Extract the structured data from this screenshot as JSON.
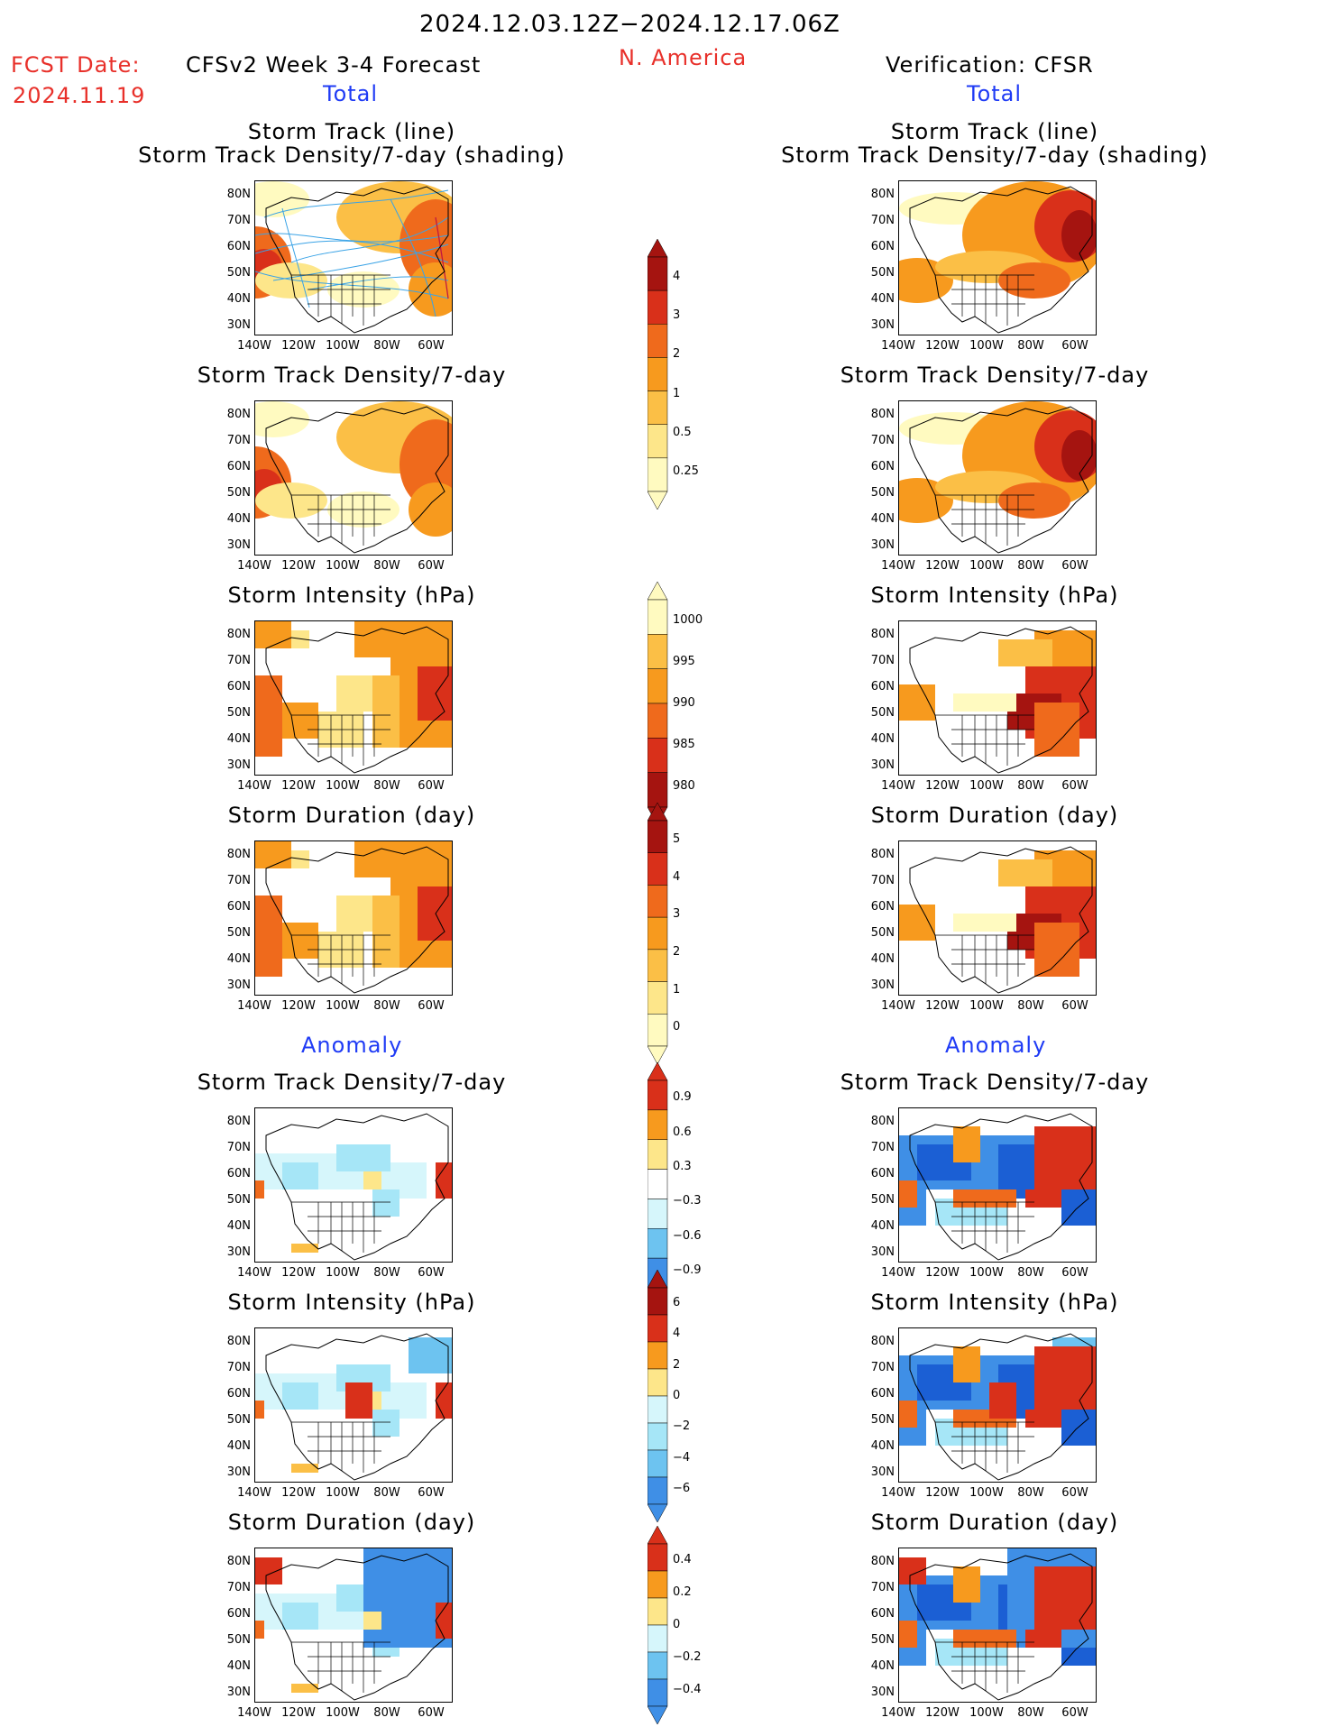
{
  "header": {
    "period": "2024.12.03.12Z−2024.12.17.06Z",
    "fcst_date_label": "FCST Date:",
    "fcst_date_value": "2024.11.19",
    "model_title": "CFSv2 Week 3-4 Forecast",
    "region": "N. America",
    "verification": "Verification: CFSR",
    "left_total": "Total",
    "right_total": "Total",
    "left_anomaly": "Anomaly",
    "right_anomaly": "Anomaly"
  },
  "axes": {
    "lat_labels": [
      "80N",
      "70N",
      "60N",
      "50N",
      "40N",
      "30N"
    ],
    "lon_labels": [
      "140W",
      "120W",
      "100W",
      "80W",
      "60W"
    ]
  },
  "panels": {
    "track_title_1": "Storm Track (line)",
    "track_title_2": "Storm Track Density/7-day (shading)",
    "density": "Storm Track Density/7-day",
    "intensity": "Storm Intensity (hPa)",
    "duration": "Storm Duration (day)"
  },
  "colorbars": {
    "density_total": [
      "4",
      "3",
      "2",
      "1",
      "0.5",
      "0.25"
    ],
    "intensity_total": [
      "1000",
      "995",
      "990",
      "985",
      "980"
    ],
    "duration_total": [
      "5",
      "4",
      "3",
      "2",
      "1",
      "0"
    ],
    "density_anom": [
      "0.9",
      "0.6",
      "0.3",
      "−0.3",
      "−0.6",
      "−0.9"
    ],
    "intensity_anom": [
      "6",
      "4",
      "2",
      "0",
      "−2",
      "−4",
      "−6"
    ],
    "duration_anom": [
      "0.4",
      "0.2",
      "0",
      "−0.2",
      "−0.4"
    ]
  },
  "colors": {
    "warm": [
      "#fffac0",
      "#fde68a",
      "#fbbf46",
      "#f79a1e",
      "#ef6a1c",
      "#d9301a",
      "#a51410"
    ],
    "cool": [
      "#d6f6fb",
      "#a6e6f7",
      "#6dc3f0",
      "#3f8fe6",
      "#1b5fd4"
    ],
    "track_line": "#3aa3e6",
    "hdr_red": "#e8302a",
    "hdr_blue": "#1f3bf5"
  }
}
